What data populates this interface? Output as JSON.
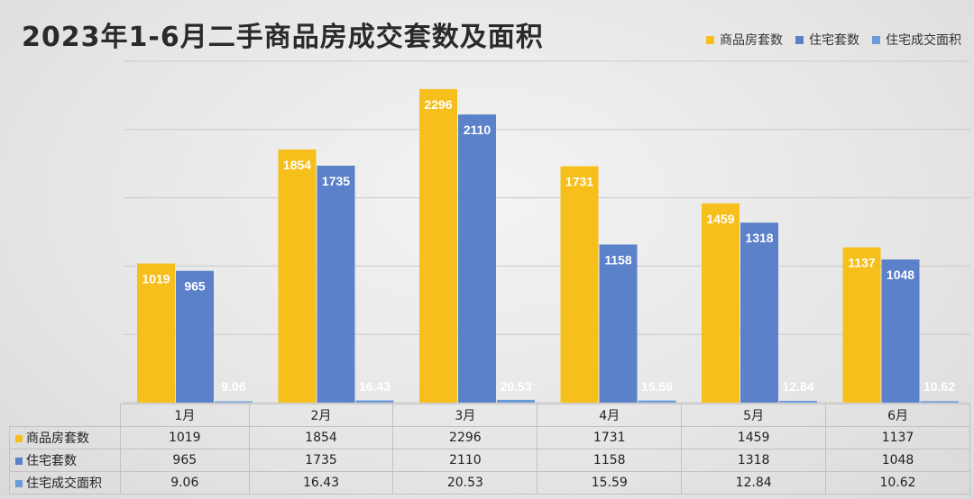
{
  "title": "2023年1-6月二手商品房成交套数及面积",
  "legend": [
    {
      "label": "商品房套数",
      "color": "#f6bf1c"
    },
    {
      "label": "住宅套数",
      "color": "#5a81c9"
    },
    {
      "label": "住宅成交面积",
      "color": "#6a9ad8"
    }
  ],
  "chart_data": {
    "type": "bar",
    "title": "2023年1-6月二手商品房成交套数及面积",
    "categories": [
      "1月",
      "2月",
      "3月",
      "4月",
      "5月",
      "6月"
    ],
    "ylim": [
      0,
      2500
    ],
    "grid": true,
    "legend_position": "top-right",
    "series": [
      {
        "name": "商品房套数",
        "color": "#f6bf1c",
        "values": [
          1019,
          1854,
          2296,
          1731,
          1459,
          1137
        ]
      },
      {
        "name": "住宅套数",
        "color": "#5a81c9",
        "values": [
          965,
          1735,
          2110,
          1158,
          1318,
          1048
        ]
      },
      {
        "name": "住宅成交面积",
        "color": "#6a9ad8",
        "values": [
          9.06,
          16.43,
          20.53,
          15.59,
          12.84,
          10.62
        ]
      }
    ],
    "table": {
      "rows": [
        {
          "name": "商品房套数",
          "values": [
            "1019",
            "1854",
            "2296",
            "1731",
            "1459",
            "1137"
          ]
        },
        {
          "name": "住宅套数",
          "values": [
            "965",
            "1735",
            "2110",
            "1158",
            "1318",
            "1048"
          ]
        },
        {
          "name": "住宅成交面积",
          "values": [
            "9.06",
            "16.43",
            "20.53",
            "15.59",
            "12.84",
            "10.62"
          ]
        }
      ]
    }
  }
}
